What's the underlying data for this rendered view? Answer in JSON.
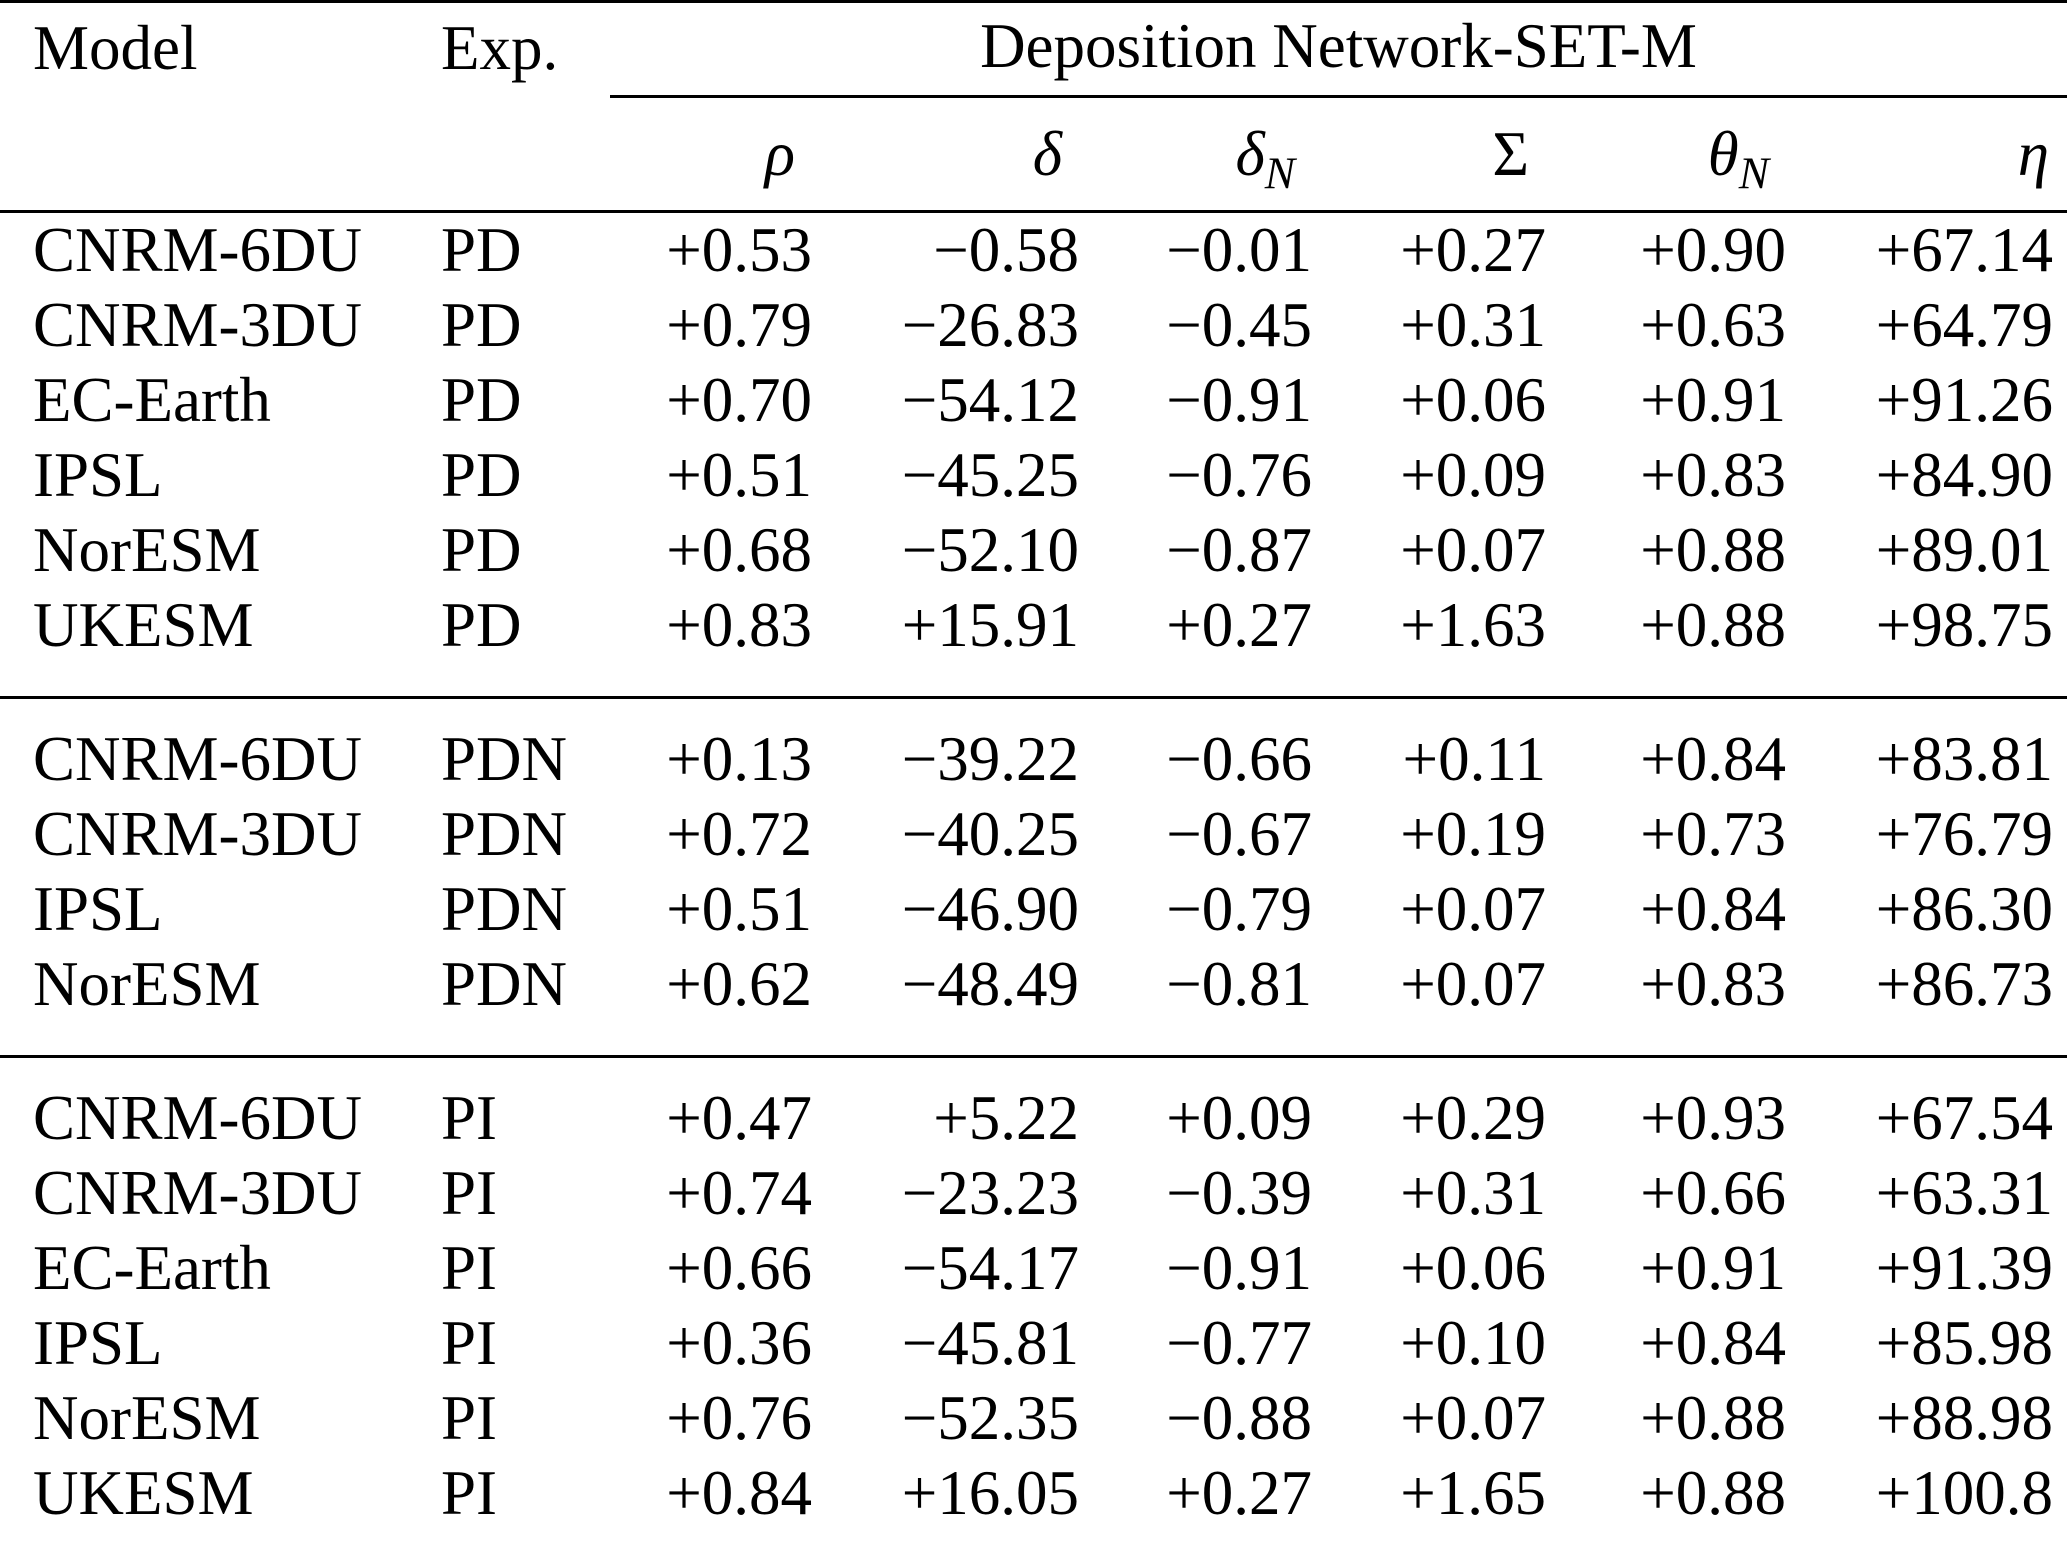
{
  "table": {
    "headers": {
      "model": "Model",
      "exp": "Exp.",
      "group": "Deposition Network-SET-M"
    },
    "symbol_headers": [
      {
        "glyph": "ρ",
        "sub": "",
        "upright": false
      },
      {
        "glyph": "δ",
        "sub": "",
        "upright": false
      },
      {
        "glyph": "δ",
        "sub": "N",
        "upright": false
      },
      {
        "glyph": "Σ",
        "sub": "",
        "upright": true
      },
      {
        "glyph": "θ",
        "sub": "N",
        "upright": false
      },
      {
        "glyph": "η",
        "sub": "",
        "upright": false
      }
    ],
    "blocks": [
      {
        "experiment": "PD",
        "rows": [
          [
            "CNRM-6DU",
            "PD",
            "+0.53",
            "−0.58",
            "−0.01",
            "+0.27",
            "+0.90",
            "+67.14"
          ],
          [
            "CNRM-3DU",
            "PD",
            "+0.79",
            "−26.83",
            "−0.45",
            "+0.31",
            "+0.63",
            "+64.79"
          ],
          [
            "EC-Earth",
            "PD",
            "+0.70",
            "−54.12",
            "−0.91",
            "+0.06",
            "+0.91",
            "+91.26"
          ],
          [
            "IPSL",
            "PD",
            "+0.51",
            "−45.25",
            "−0.76",
            "+0.09",
            "+0.83",
            "+84.90"
          ],
          [
            "NorESM",
            "PD",
            "+0.68",
            "−52.10",
            "−0.87",
            "+0.07",
            "+0.88",
            "+89.01"
          ],
          [
            "UKESM",
            "PD",
            "+0.83",
            "+15.91",
            "+0.27",
            "+1.63",
            "+0.88",
            "+98.75"
          ]
        ]
      },
      {
        "experiment": "PDN",
        "rows": [
          [
            "CNRM-6DU",
            "PDN",
            "+0.13",
            "−39.22",
            "−0.66",
            "+0.11",
            "+0.84",
            "+83.81"
          ],
          [
            "CNRM-3DU",
            "PDN",
            "+0.72",
            "−40.25",
            "−0.67",
            "+0.19",
            "+0.73",
            "+76.79"
          ],
          [
            "IPSL",
            "PDN",
            "+0.51",
            "−46.90",
            "−0.79",
            "+0.07",
            "+0.84",
            "+86.30"
          ],
          [
            "NorESM",
            "PDN",
            "+0.62",
            "−48.49",
            "−0.81",
            "+0.07",
            "+0.83",
            "+86.73"
          ]
        ]
      },
      {
        "experiment": "PI",
        "rows": [
          [
            "CNRM-6DU",
            "PI",
            "+0.47",
            "+5.22",
            "+0.09",
            "+0.29",
            "+0.93",
            "+67.54"
          ],
          [
            "CNRM-3DU",
            "PI",
            "+0.74",
            "−23.23",
            "−0.39",
            "+0.31",
            "+0.66",
            "+63.31"
          ],
          [
            "EC-Earth",
            "PI",
            "+0.66",
            "−54.17",
            "−0.91",
            "+0.06",
            "+0.91",
            "+91.39"
          ],
          [
            "IPSL",
            "PI",
            "+0.36",
            "−45.81",
            "−0.77",
            "+0.10",
            "+0.84",
            "+85.98"
          ],
          [
            "NorESM",
            "PI",
            "+0.76",
            "−52.35",
            "−0.88",
            "+0.07",
            "+0.88",
            "+88.98"
          ],
          [
            "UKESM",
            "PI",
            "+0.84",
            "+16.05",
            "+0.27",
            "+1.65",
            "+0.88",
            "+100.8"
          ]
        ]
      }
    ]
  }
}
